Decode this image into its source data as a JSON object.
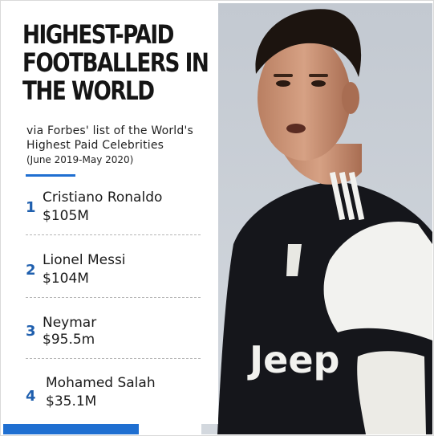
{
  "title_lines": [
    "HIGHEST-PAID",
    "FOOTBALLERS IN",
    "THE WORLD"
  ],
  "subtitle": "via Forbes' list of the World's Highest Paid Celebrities",
  "date_range": "(June 2019-May 2020)",
  "ranking": [
    {
      "rank": "1",
      "name": "Cristiano Ronaldo",
      "earnings": "$105M"
    },
    {
      "rank": "2",
      "name": "Lionel Messi",
      "earnings": "$104M"
    },
    {
      "rank": "3",
      "name": "Neymar",
      "earnings": "$95.5m"
    },
    {
      "rank": "4",
      "name": "Mohamed Salah",
      "earnings": "$35.1M"
    }
  ],
  "colors": {
    "accent": "#1f6fd1",
    "rank_number": "#1f5fae",
    "title_text": "#151515",
    "photo_background": "#cfd4da",
    "jersey_black": "#15161b",
    "jersey_white": "#f2f2ef"
  }
}
